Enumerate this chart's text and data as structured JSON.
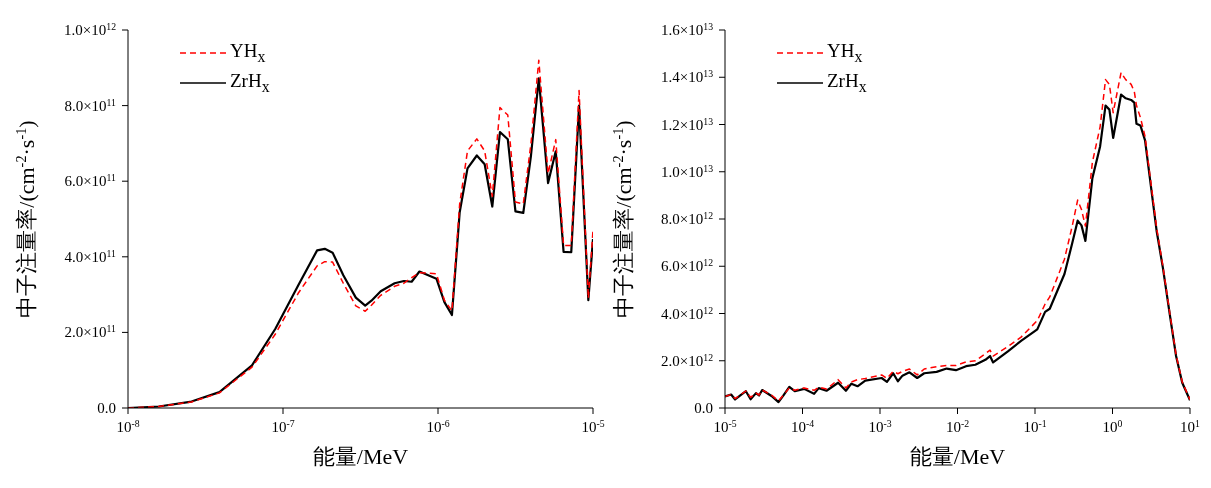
{
  "chart_data": [
    {
      "type": "line",
      "xlabel": "能量/MeV",
      "ylabel": "中子注量率/(cm$^{-2}$·s$^{-1}$)",
      "log": "x",
      "grid": false,
      "legend": "top left",
      "marker": "none",
      "x": [
        1e-08,
        1.58e-08,
        2.57e-08,
        3.89e-08,
        6.31e-08,
        8.91e-08,
        1.26e-07,
        1.66e-07,
        1.86e-07,
        2.09e-07,
        2.45e-07,
        2.95e-07,
        3.39e-07,
        3.72e-07,
        4.27e-07,
        5.25e-07,
        6.03e-07,
        6.76e-07,
        7.59e-07,
        9.77e-07,
        1.1e-06,
        1.23e-06,
        1.38e-06,
        1.55e-06,
        1.78e-06,
        2e-06,
        2.24e-06,
        2.51e-06,
        2.82e-06,
        3.16e-06,
        3.55e-06,
        3.98e-06,
        4.47e-06,
        5.13e-06,
        5.75e-06,
        6.46e-06,
        7.24e-06,
        8.13e-06,
        9.33e-06,
        1e-05
      ],
      "xlim": [
        1e-08,
        1e-05
      ],
      "xticks": [
        {
          "value": 1e-08,
          "label": "10$^{-8}$"
        },
        {
          "value": 1e-07,
          "label": "10$^{-7}$"
        },
        {
          "value": 1e-06,
          "label": "10$^{-6}$"
        },
        {
          "value": 1e-05,
          "label": "10$^{-5}$"
        }
      ],
      "ylim": [
        0,
        1000000000000.0
      ],
      "yticks": [
        {
          "value": 0,
          "label": "0.0"
        },
        {
          "value": 200000000000.0,
          "label": "2.0×10$^{11}$"
        },
        {
          "value": 400000000000.0,
          "label": "4.0×10$^{11}$"
        },
        {
          "value": 600000000000.0,
          "label": "6.0×10$^{11}$"
        },
        {
          "value": 800000000000.0,
          "label": "8.0×10$^{11}$"
        },
        {
          "value": 1000000000000.0,
          "label": "1.0×10$^{12}$"
        }
      ],
      "series": [
        {
          "name": "YH$_{x}$",
          "color": "#ff0000",
          "line_style": "dashed",
          "values": [
            0,
            4000000000.0,
            16000000000.0,
            40000000000.0,
            108000000000.0,
            195000000000.0,
            305000000000.0,
            376000000000.0,
            387000000000.0,
            386000000000.0,
            330000000000.0,
            270000000000.0,
            256000000000.0,
            272000000000.0,
            298000000000.0,
            322000000000.0,
            330000000000.0,
            345000000000.0,
            358000000000.0,
            355000000000.0,
            285000000000.0,
            257000000000.0,
            540000000000.0,
            680000000000.0,
            712000000000.0,
            680000000000.0,
            560000000000.0,
            795000000000.0,
            775000000000.0,
            545000000000.0,
            540000000000.0,
            700000000000.0,
            920000000000.0,
            620000000000.0,
            710000000000.0,
            430000000000.0,
            430000000000.0,
            840000000000.0,
            290000000000.0,
            470000000000.0
          ]
        },
        {
          "name": "ZrH$_{x}$",
          "color": "#000000",
          "line_style": "solid",
          "values": [
            0,
            4000000000.0,
            17000000000.0,
            42000000000.0,
            113000000000.0,
            209000000000.0,
            326000000000.0,
            417000000000.0,
            421000000000.0,
            411000000000.0,
            351000000000.0,
            292000000000.0,
            271000000000.0,
            284000000000.0,
            309000000000.0,
            330000000000.0,
            336000000000.0,
            334000000000.0,
            361000000000.0,
            342000000000.0,
            280000000000.0,
            246000000000.0,
            518000000000.0,
            634000000000.0,
            668000000000.0,
            645000000000.0,
            533000000000.0,
            730000000000.0,
            711000000000.0,
            520000000000.0,
            516000000000.0,
            668000000000.0,
            872000000000.0,
            595000000000.0,
            679000000000.0,
            413000000000.0,
            412000000000.0,
            800000000000.0,
            285000000000.0,
            447000000000.0
          ]
        }
      ]
    },
    {
      "type": "line",
      "xlabel": "能量/MeV",
      "ylabel": "中子注量率/(cm$^{-2}$·s$^{-1}$)",
      "log": "x",
      "grid": false,
      "legend": "top left",
      "marker": "none",
      "x": [
        1e-05,
        1.2e-05,
        1.35e-05,
        1.86e-05,
        2.14e-05,
        2.51e-05,
        2.75e-05,
        3.02e-05,
        3.98e-05,
        4.9e-05,
        5.62e-05,
        6.76e-05,
        7.94e-05,
        0.000105,
        0.000141,
        0.000162,
        0.000204,
        0.000288,
        0.000363,
        0.000427,
        0.000513,
        0.000646,
        0.00105,
        0.00123,
        0.00148,
        0.0017,
        0.00195,
        0.0024,
        0.00302,
        0.00372,
        0.00537,
        0.00724,
        0.00955,
        0.0129,
        0.017,
        0.0229,
        0.0263,
        0.0288,
        0.0447,
        0.0661,
        0.107,
        0.135,
        0.155,
        0.24,
        0.302,
        0.355,
        0.398,
        0.447,
        0.55,
        0.692,
        0.813,
        0.912,
        1.02,
        1.29,
        1.48,
        1.74,
        1.91,
        2.04,
        2.29,
        2.63,
        3.72,
        4.47,
        5.5,
        6.61,
        7.94,
        10
      ],
      "xlim": [
        1e-05,
        10
      ],
      "xticks": [
        {
          "value": 1e-05,
          "label": "10$^{-5}$"
        },
        {
          "value": 0.0001,
          "label": "10$^{-4}$"
        },
        {
          "value": 0.001,
          "label": "10$^{-3}$"
        },
        {
          "value": 0.01,
          "label": "10$^{-2}$"
        },
        {
          "value": 0.1,
          "label": "10$^{-1}$"
        },
        {
          "value": 1,
          "label": "10$^{0}$"
        },
        {
          "value": 10,
          "label": "10$^{1}$"
        }
      ],
      "ylim": [
        0,
        16000000000000.0
      ],
      "yticks": [
        {
          "value": 0,
          "label": "0.0"
        },
        {
          "value": 2000000000000.0,
          "label": "2.0×10$^{12}$"
        },
        {
          "value": 4000000000000.0,
          "label": "4.0×10$^{12}$"
        },
        {
          "value": 6000000000000.0,
          "label": "6.0×10$^{12}$"
        },
        {
          "value": 8000000000000.0,
          "label": "8.0×10$^{12}$"
        },
        {
          "value": 10000000000000.0,
          "label": "1.0×10$^{13}$"
        },
        {
          "value": 12000000000000.0,
          "label": "1.2×10$^{13}$"
        },
        {
          "value": 14000000000000.0,
          "label": "1.4×10$^{13}$"
        },
        {
          "value": 16000000000000.0,
          "label": "1.6×10$^{13}$"
        }
      ],
      "series": [
        {
          "name": "YH$_{x}$",
          "color": "#ff0000",
          "line_style": "dashed",
          "values": [
            490000000000.0,
            570000000000.0,
            400000000000.0,
            720000000000.0,
            450000000000.0,
            630000000000.0,
            550000000000.0,
            760000000000.0,
            550000000000.0,
            300000000000.0,
            530000000000.0,
            850000000000.0,
            750000000000.0,
            850000000000.0,
            750000000000.0,
            880000000000.0,
            800000000000.0,
            1200000000000.0,
            850000000000.0,
            1100000000000.0,
            1200000000000.0,
            1250000000000.0,
            1400000000000.0,
            1250000000000.0,
            1550000000000.0,
            1450000000000.0,
            1550000000000.0,
            1650000000000.0,
            1400000000000.0,
            1650000000000.0,
            1750000000000.0,
            1800000000000.0,
            1800000000000.0,
            1950000000000.0,
            2000000000000.0,
            2300000000000.0,
            2450000000000.0,
            2200000000000.0,
            2600000000000.0,
            3000000000000.0,
            3700000000000.0,
            4400000000000.0,
            4700000000000.0,
            6300000000000.0,
            7700000000000.0,
            8800000000000.0,
            8400000000000.0,
            7700000000000.0,
            10400000000000.0,
            11900000000000.0,
            13900000000000.0,
            13700000000000.0,
            12500000000000.0,
            14200000000000.0,
            13900000000000.0,
            13700000000000.0,
            13400000000000.0,
            12800000000000.0,
            12300000000000.0,
            11500000000000.0,
            7600000000000.0,
            6000000000000.0,
            4000000000000.0,
            2250000000000.0,
            1100000000000.0,
            350000000000.0
          ]
        },
        {
          "name": "ZrH$_{x}$",
          "color": "#000000",
          "line_style": "solid",
          "values": [
            490000000000.0,
            570000000000.0,
            360000000000.0,
            710000000000.0,
            370000000000.0,
            630000000000.0,
            530000000000.0,
            760000000000.0,
            510000000000.0,
            250000000000.0,
            510000000000.0,
            890000000000.0,
            710000000000.0,
            810000000000.0,
            600000000000.0,
            840000000000.0,
            730000000000.0,
            1070000000000.0,
            730000000000.0,
            1030000000000.0,
            920000000000.0,
            1160000000000.0,
            1270000000000.0,
            1110000000000.0,
            1470000000000.0,
            1130000000000.0,
            1370000000000.0,
            1510000000000.0,
            1270000000000.0,
            1470000000000.0,
            1530000000000.0,
            1670000000000.0,
            1600000000000.0,
            1770000000000.0,
            1830000000000.0,
            2040000000000.0,
            2200000000000.0,
            1930000000000.0,
            2400000000000.0,
            2840000000000.0,
            3330000000000.0,
            4070000000000.0,
            4200000000000.0,
            5670000000000.0,
            6970000000000.0,
            7930000000000.0,
            7730000000000.0,
            7070000000000.0,
            9730000000000.0,
            11070000000000.0,
            12800000000000.0,
            12630000000000.0,
            11430000000000.0,
            13270000000000.0,
            13110000000000.0,
            13040000000000.0,
            12930000000000.0,
            12030000000000.0,
            11960000000000.0,
            11330000000000.0,
            7470000000000.0,
            5930000000000.0,
            3930000000000.0,
            2200000000000.0,
            1070000000000.0,
            330000000000.0
          ]
        }
      ]
    }
  ]
}
